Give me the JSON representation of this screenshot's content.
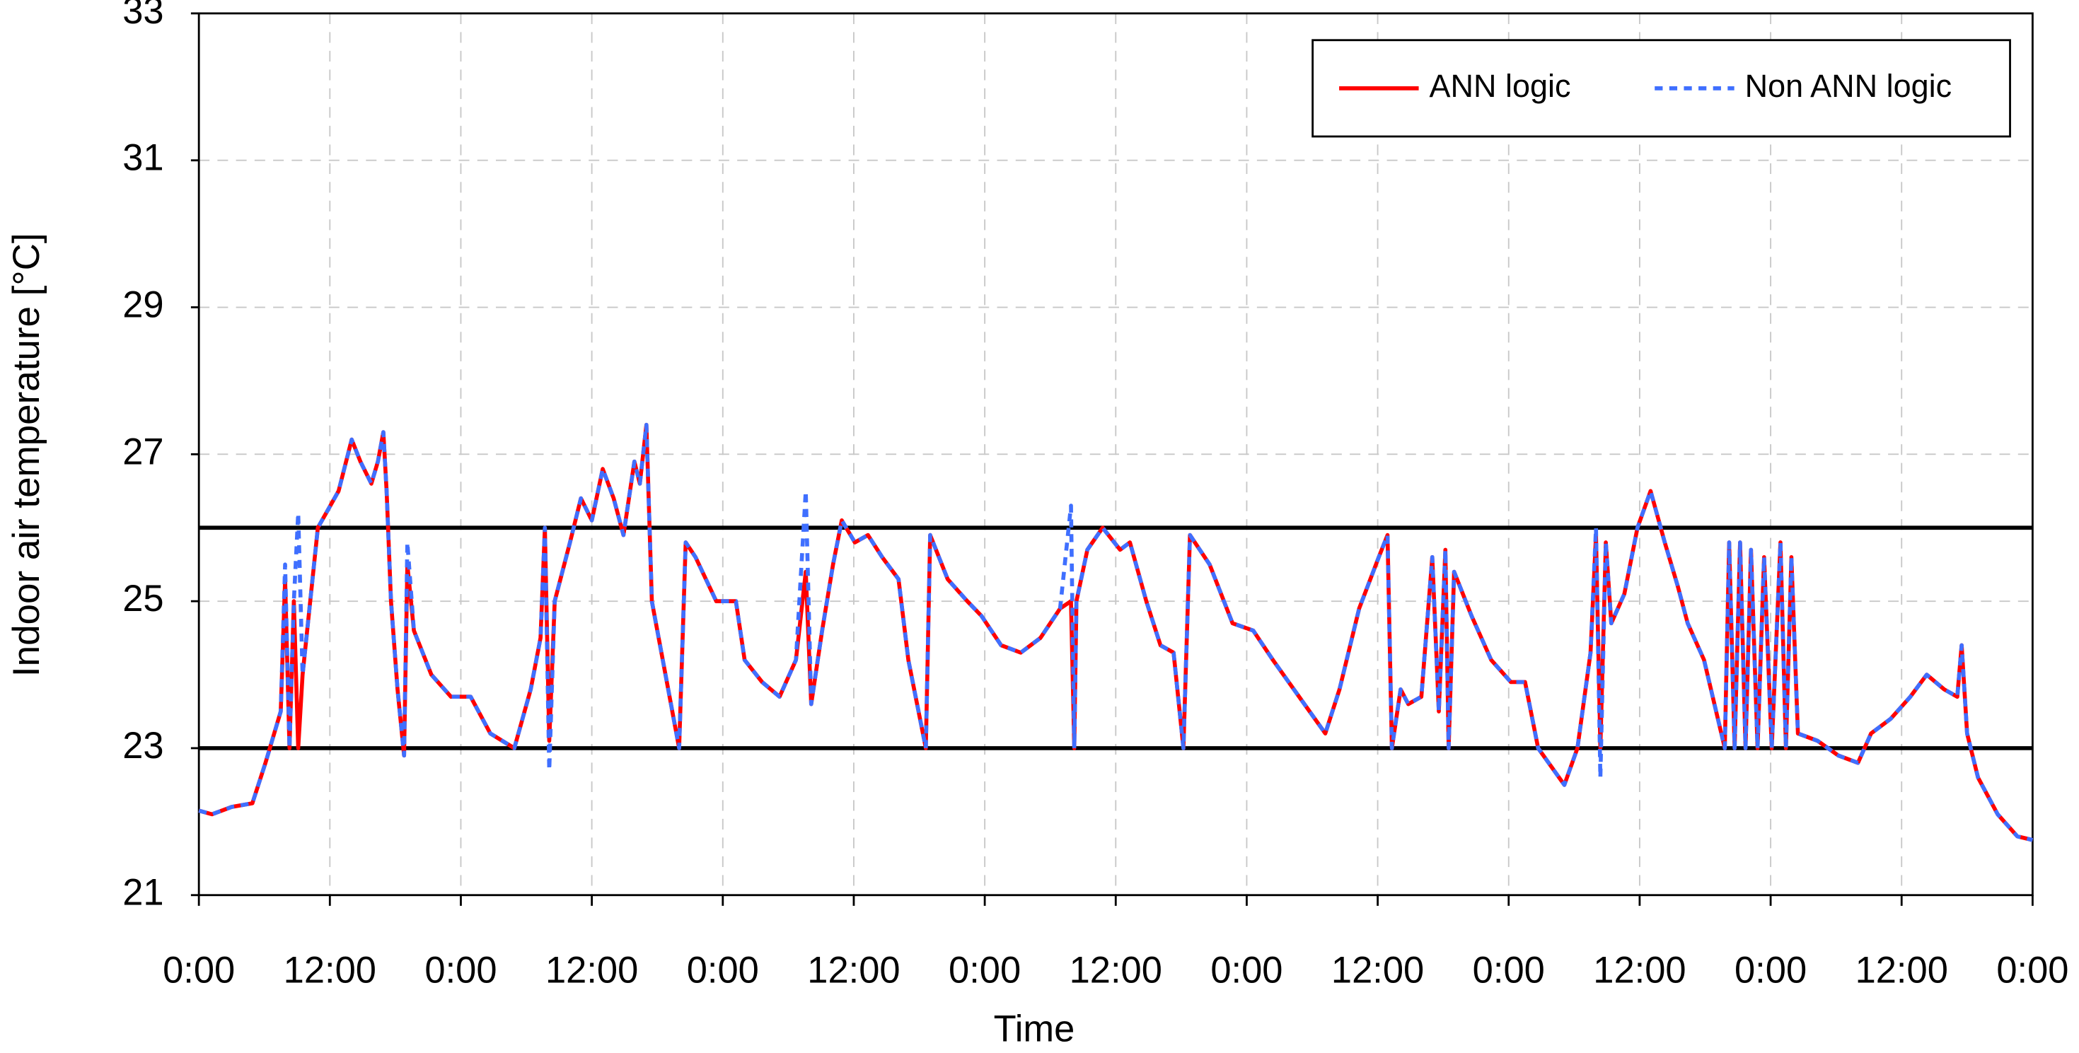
{
  "chart_data": {
    "type": "line",
    "xlabel": "Time",
    "ylabel": "Indoor air temperature [°C]",
    "x": [
      0,
      1.2,
      3.0,
      4.9,
      6.1,
      7.5,
      7.9,
      8.3,
      8.7,
      9.1,
      9.5,
      10.9,
      12.8,
      14.0,
      14.8,
      15.8,
      16.4,
      16.9,
      17.2,
      17.6,
      18.2,
      18.8,
      19.1,
      19.7,
      21.3,
      23.1,
      24.9,
      26.7,
      28.9,
      30.4,
      31.3,
      31.7,
      32.1,
      32.6,
      34.0,
      35.0,
      36.0,
      37.0,
      38.0,
      38.9,
      39.9,
      40.4,
      41.0,
      41.5,
      42.5,
      44.0,
      44.6,
      45.5,
      47.4,
      49.2,
      50.0,
      51.6,
      53.2,
      54.7,
      55.6,
      56.1,
      57.1,
      58.1,
      58.9,
      60.1,
      61.3,
      62.6,
      64.1,
      65.0,
      66.6,
      67.0,
      68.6,
      70.4,
      71.7,
      73.5,
      75.3,
      77.1,
      78.9,
      79.9,
      80.2,
      80.4,
      81.4,
      82.8,
      84.4,
      85.3,
      86.8,
      88.1,
      89.3,
      90.2,
      90.8,
      92.6,
      94.7,
      96.6,
      98.4,
      100.8,
      103.2,
      104.5,
      106.3,
      108.1,
      108.9,
      109.3,
      110.1,
      110.8,
      112.0,
      113.0,
      113.6,
      114.2,
      114.5,
      115.0,
      116.6,
      118.4,
      120.2,
      121.5,
      122.7,
      125.1,
      126.3,
      127.5,
      128.0,
      128.4,
      128.9,
      129.4,
      130.6,
      131.8,
      133.0,
      134.3,
      135.5,
      136.4,
      137.9,
      139.8,
      140.2,
      140.7,
      141.2,
      141.7,
      142.2,
      142.8,
      143.4,
      144.1,
      144.9,
      145.4,
      145.9,
      146.5,
      148.3,
      150.2,
      152.0,
      153.2,
      155.0,
      156.8,
      158.3,
      159.9,
      161.1,
      161.5,
      162.0,
      163.0,
      164.8,
      166.6,
      168
    ],
    "series": [
      {
        "name": "ANN logic",
        "color": "#ff0000",
        "dash": "solid",
        "values": [
          22.15,
          22.1,
          22.2,
          22.25,
          22.8,
          23.5,
          25.3,
          23.0,
          25.0,
          23.0,
          24.0,
          26.0,
          26.5,
          27.2,
          26.9,
          26.6,
          26.9,
          27.3,
          26.5,
          25.0,
          23.8,
          22.9,
          25.5,
          24.6,
          24.0,
          23.7,
          23.7,
          23.2,
          23.0,
          23.8,
          24.5,
          26.0,
          23.1,
          25.0,
          25.8,
          26.4,
          26.1,
          26.8,
          26.4,
          25.9,
          26.9,
          26.6,
          27.4,
          25.0,
          24.2,
          23.0,
          25.8,
          25.6,
          25.0,
          25.0,
          24.2,
          23.9,
          23.7,
          24.2,
          25.4,
          23.6,
          24.6,
          25.5,
          26.1,
          25.8,
          25.9,
          25.6,
          25.3,
          24.2,
          23.0,
          25.9,
          25.3,
          25.0,
          24.8,
          24.4,
          24.3,
          24.5,
          24.9,
          25.0,
          23.0,
          25.0,
          25.7,
          26.0,
          25.7,
          25.8,
          25.0,
          24.4,
          24.3,
          23.0,
          25.9,
          25.5,
          24.7,
          24.6,
          24.2,
          23.7,
          23.2,
          23.8,
          24.9,
          25.6,
          25.9,
          23.0,
          23.8,
          23.6,
          23.7,
          25.6,
          23.5,
          25.7,
          23.0,
          25.4,
          24.8,
          24.2,
          23.9,
          23.9,
          23.0,
          22.5,
          23.0,
          24.3,
          25.9,
          23.0,
          25.8,
          24.7,
          25.1,
          26.0,
          26.5,
          25.8,
          25.2,
          24.7,
          24.2,
          23.0,
          25.8,
          23.0,
          25.8,
          23.0,
          25.7,
          23.0,
          25.6,
          23.0,
          25.8,
          23.0,
          25.6,
          23.2,
          23.1,
          22.9,
          22.8,
          23.2,
          23.4,
          23.7,
          24.0,
          23.8,
          23.7,
          24.4,
          23.2,
          22.6,
          22.1,
          21.8,
          21.75
        ]
      },
      {
        "name": "Non ANN logic",
        "color": "#3f6fff",
        "dash": "dotted",
        "values": [
          22.15,
          22.1,
          22.2,
          22.25,
          22.8,
          23.5,
          25.5,
          23.0,
          25.0,
          26.2,
          24.0,
          26.0,
          26.5,
          27.2,
          26.9,
          26.6,
          26.9,
          27.3,
          26.5,
          25.0,
          23.8,
          22.9,
          25.8,
          24.6,
          24.0,
          23.7,
          23.7,
          23.2,
          23.0,
          23.8,
          24.5,
          26.0,
          22.7,
          25.0,
          25.8,
          26.4,
          26.1,
          26.8,
          26.4,
          25.9,
          26.9,
          26.6,
          27.4,
          25.0,
          24.2,
          23.0,
          25.8,
          25.6,
          25.0,
          25.0,
          24.2,
          23.9,
          23.7,
          24.2,
          26.5,
          23.6,
          24.6,
          25.5,
          26.1,
          25.8,
          25.9,
          25.6,
          25.3,
          24.2,
          23.0,
          25.9,
          25.3,
          25.0,
          24.8,
          24.4,
          24.3,
          24.5,
          24.9,
          26.3,
          23.0,
          25.0,
          25.7,
          26.0,
          25.7,
          25.8,
          25.0,
          24.4,
          24.3,
          23.0,
          25.9,
          25.5,
          24.7,
          24.6,
          24.2,
          23.7,
          23.2,
          23.8,
          24.9,
          25.6,
          25.9,
          23.0,
          23.8,
          23.6,
          23.7,
          25.6,
          23.5,
          25.7,
          23.0,
          25.4,
          24.8,
          24.2,
          23.9,
          23.9,
          23.0,
          22.5,
          23.0,
          24.3,
          26.0,
          22.6,
          25.8,
          24.7,
          25.1,
          26.0,
          26.5,
          25.8,
          25.2,
          24.7,
          24.2,
          23.0,
          25.8,
          23.0,
          25.8,
          23.0,
          25.7,
          23.0,
          25.6,
          23.0,
          25.8,
          23.0,
          25.6,
          23.2,
          23.1,
          22.9,
          22.8,
          23.2,
          23.4,
          23.7,
          24.0,
          23.8,
          23.7,
          24.4,
          23.2,
          22.6,
          22.1,
          21.8,
          21.75
        ]
      }
    ],
    "hlines": [
      23,
      26
    ],
    "xlim": [
      0,
      168
    ],
    "xticks": [
      {
        "value": 0,
        "label": "0:00"
      },
      {
        "value": 12,
        "label": "12:00"
      },
      {
        "value": 24,
        "label": "0:00"
      },
      {
        "value": 36,
        "label": "12:00"
      },
      {
        "value": 48,
        "label": "0:00"
      },
      {
        "value": 60,
        "label": "12:00"
      },
      {
        "value": 72,
        "label": "0:00"
      },
      {
        "value": 84,
        "label": "12:00"
      },
      {
        "value": 96,
        "label": "0:00"
      },
      {
        "value": 108,
        "label": "12:00"
      },
      {
        "value": 120,
        "label": "0:00"
      },
      {
        "value": 132,
        "label": "12:00"
      },
      {
        "value": 144,
        "label": "0:00"
      },
      {
        "value": 156,
        "label": "12:00"
      },
      {
        "value": 168,
        "label": "0:00"
      }
    ],
    "ylim": [
      21,
      33
    ],
    "yticks": [
      21,
      23,
      25,
      27,
      29,
      31,
      33
    ],
    "grid": true,
    "legend": "top-right"
  }
}
